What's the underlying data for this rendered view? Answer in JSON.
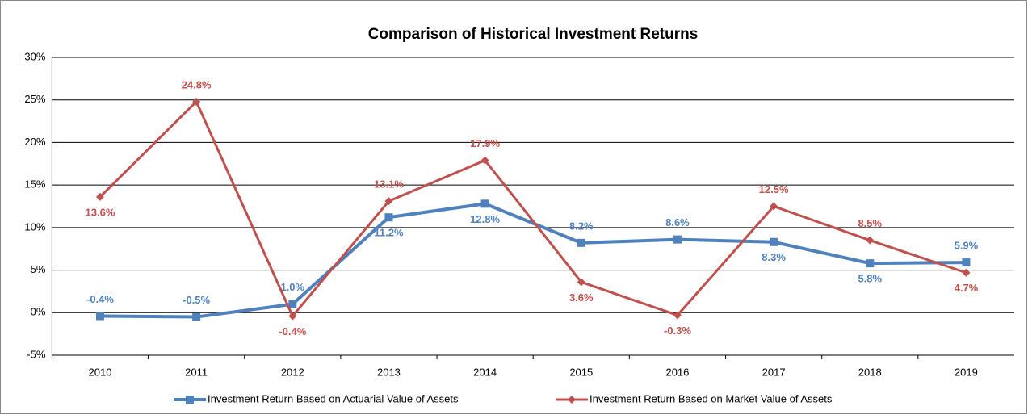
{
  "chart_data": {
    "type": "line",
    "title": "Comparison of Historical Investment Returns",
    "categories": [
      "2010",
      "2011",
      "2012",
      "2013",
      "2014",
      "2015",
      "2016",
      "2017",
      "2018",
      "2019"
    ],
    "series": [
      {
        "name": "Investment Return Based on Actuarial Value of Assets",
        "color": "#4f81bd",
        "values": [
          -0.4,
          -0.5,
          1.0,
          11.2,
          12.8,
          8.2,
          8.6,
          8.3,
          5.8,
          5.9
        ],
        "value_labels": [
          "-0.4%",
          "-0.5%",
          "1.0%",
          "11.2%",
          "12.8%",
          "8.2%",
          "8.6%",
          "8.3%",
          "5.8%",
          "5.9%"
        ]
      },
      {
        "name": "Investment Return Based on Market Value of Assets",
        "color": "#c0504d",
        "values": [
          13.6,
          24.8,
          -0.4,
          13.1,
          17.9,
          3.6,
          -0.3,
          12.5,
          8.5,
          4.7
        ],
        "value_labels": [
          "13.6%",
          "24.8%",
          "-0.4%",
          "13.1%",
          "17.9%",
          "3.6%",
          "-0.3%",
          "12.5%",
          "8.5%",
          "4.7%"
        ]
      }
    ],
    "ylim": [
      -5,
      30
    ],
    "yticks": [
      {
        "value": -5,
        "label": "-5%"
      },
      {
        "value": 0,
        "label": "0%"
      },
      {
        "value": 5,
        "label": "5%"
      },
      {
        "value": 10,
        "label": "10%"
      },
      {
        "value": 15,
        "label": "15%"
      },
      {
        "value": 20,
        "label": "20%"
      },
      {
        "value": 25,
        "label": "25%"
      },
      {
        "value": 30,
        "label": "30%"
      }
    ],
    "grid": true,
    "legend": "bottom"
  }
}
